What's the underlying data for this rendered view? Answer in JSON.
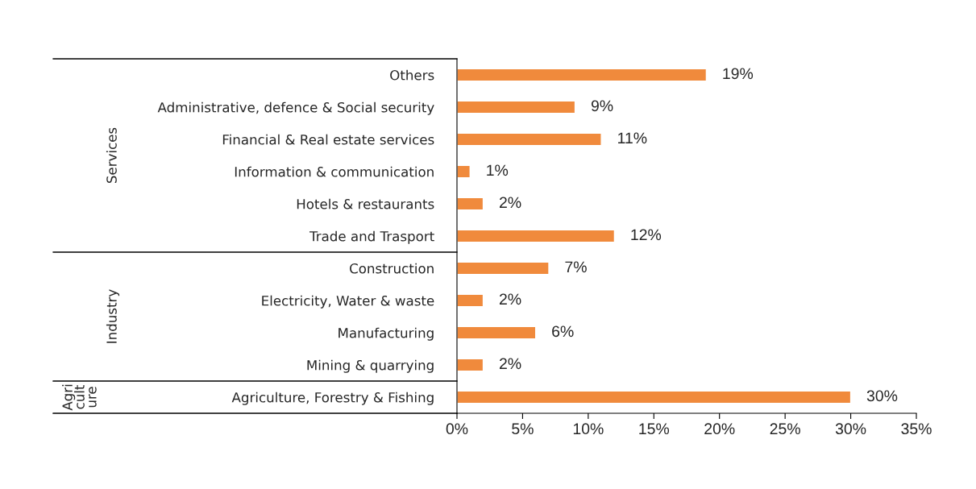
{
  "chart_data": {
    "type": "bar",
    "orientation": "horizontal",
    "categories": [
      "Others",
      "Administrative, defence & Social security",
      "Financial & Real estate services",
      "Information & communication",
      "Hotels & restaurants",
      "Trade and Trasport",
      "Construction",
      "Electricity, Water & waste",
      "Manufacturing",
      "Mining & quarrying",
      "Agriculture, Forestry & Fishing"
    ],
    "values": [
      19,
      9,
      11,
      1,
      2,
      12,
      7,
      2,
      6,
      2,
      30
    ],
    "value_labels": [
      "19%",
      "9%",
      "11%",
      "1%",
      "2%",
      "12%",
      "7%",
      "2%",
      "6%",
      "2%",
      "30%"
    ],
    "color": "#f08a3c",
    "xlim": [
      0,
      35
    ],
    "xticks": [
      {
        "value": 0,
        "label": "0%"
      },
      {
        "value": 5,
        "label": "5%"
      },
      {
        "value": 10,
        "label": "10%"
      },
      {
        "value": 15,
        "label": "15%"
      },
      {
        "value": 20,
        "label": "20%"
      },
      {
        "value": 25,
        "label": "25%"
      },
      {
        "value": 30,
        "label": "30%"
      },
      {
        "value": 35,
        "label": "35%"
      }
    ],
    "annotations": [
      "Services",
      "Industry",
      "Agri\ncult\nure"
    ],
    "grid": false,
    "legend": false
  }
}
